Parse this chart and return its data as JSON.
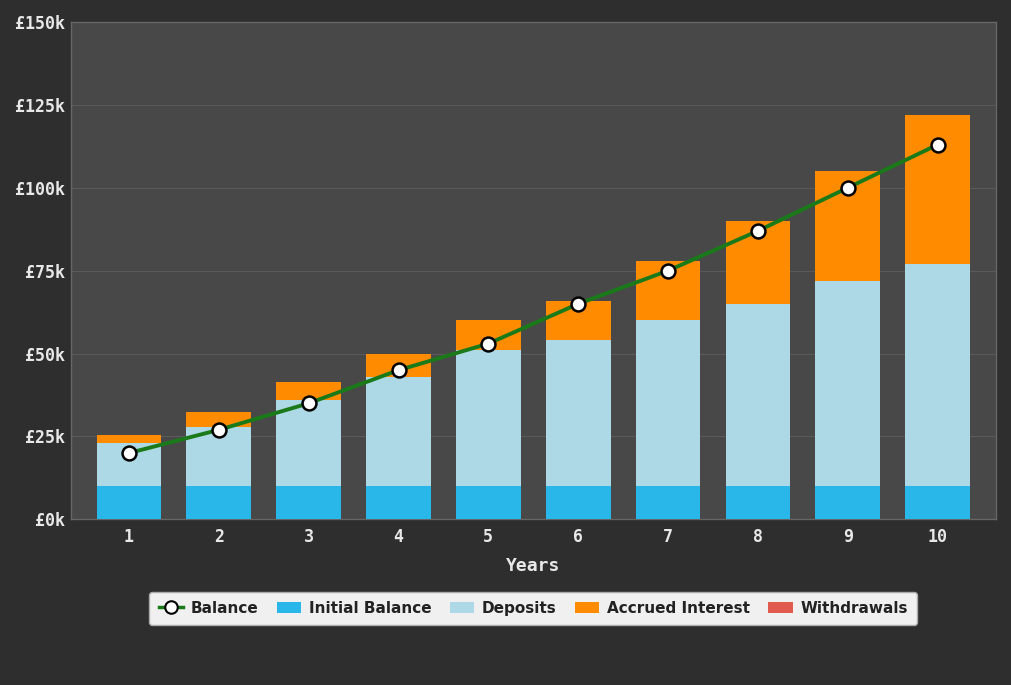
{
  "years": [
    1,
    2,
    3,
    4,
    5,
    6,
    7,
    8,
    9,
    10
  ],
  "initial_balance": [
    10000,
    10000,
    10000,
    10000,
    10000,
    10000,
    10000,
    10000,
    10000,
    10000
  ],
  "deposits": [
    13000,
    18000,
    26000,
    33000,
    41000,
    44000,
    50000,
    55000,
    62000,
    67000
  ],
  "accrued_interest": [
    2500,
    4500,
    5500,
    7000,
    9000,
    12000,
    18000,
    25000,
    33000,
    45000
  ],
  "balance": [
    20000,
    27000,
    35000,
    45000,
    53000,
    65000,
    75000,
    87000,
    100000,
    113000
  ],
  "colors": {
    "initial_balance": "#29b6e8",
    "deposits": "#add8e6",
    "accrued_interest": "#ff8c00",
    "withdrawals": "#e05a4e",
    "balance_line": "#1a7a1a",
    "balance_marker_face": "white",
    "balance_marker_edge": "black",
    "fig_background": "#2e2e2e",
    "plot_background": "#484848",
    "grid": "#5a5a5a",
    "text": "#e8e8e8",
    "axis_spine": "#666666",
    "legend_bg": "#f0f0f0",
    "legend_edge": "#aaaaaa",
    "legend_text": "#222222"
  },
  "ylim": [
    0,
    150000
  ],
  "yticks": [
    0,
    25000,
    50000,
    75000,
    100000,
    125000,
    150000
  ],
  "ytick_labels": [
    "£0k",
    "£25k",
    "£50k",
    "£75k",
    "£100k",
    "£125k",
    "£150k"
  ],
  "xlabel": "Years",
  "legend_labels": [
    "Balance",
    "Initial Balance",
    "Deposits",
    "Accrued Interest",
    "Withdrawals"
  ],
  "bar_width": 0.72
}
